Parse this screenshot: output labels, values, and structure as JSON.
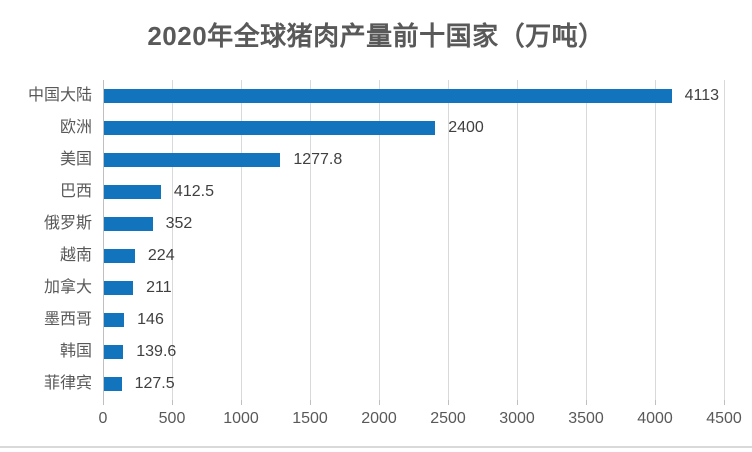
{
  "chart_data": {
    "type": "bar",
    "orientation": "horizontal",
    "title": "2020年全球猪肉产量前十国家（万吨）",
    "categories": [
      "中国大陆",
      "欧洲",
      "美国",
      "巴西",
      "俄罗斯",
      "越南",
      "加拿大",
      "墨西哥",
      "韩国",
      "菲律宾"
    ],
    "values": [
      4113,
      2400,
      1277.8,
      412.5,
      352,
      224,
      211,
      146,
      139.6,
      127.5
    ],
    "value_labels": [
      "4113",
      "2400",
      "1277.8",
      "412.5",
      "352",
      "224",
      "211",
      "146",
      "139.6",
      "127.5"
    ],
    "x_ticks": [
      0,
      500,
      1000,
      1500,
      2000,
      2500,
      3000,
      3500,
      4000,
      4500
    ],
    "x_tick_labels": [
      "0",
      "500",
      "1000",
      "1500",
      "2000",
      "2500",
      "3000",
      "3500",
      "4000",
      "4500"
    ],
    "xlim": [
      0,
      4500
    ],
    "grid": true,
    "legend": "none",
    "xlabel": "",
    "ylabel": ""
  },
  "colors": {
    "bar": "#1274bc",
    "gridline": "#d9d9d9",
    "axis_line": "#bfbfbf",
    "title_text": "#595959",
    "tick_text": "#595959",
    "value_text": "#404040",
    "border": "#d9d9d9",
    "background": "#ffffff"
  }
}
